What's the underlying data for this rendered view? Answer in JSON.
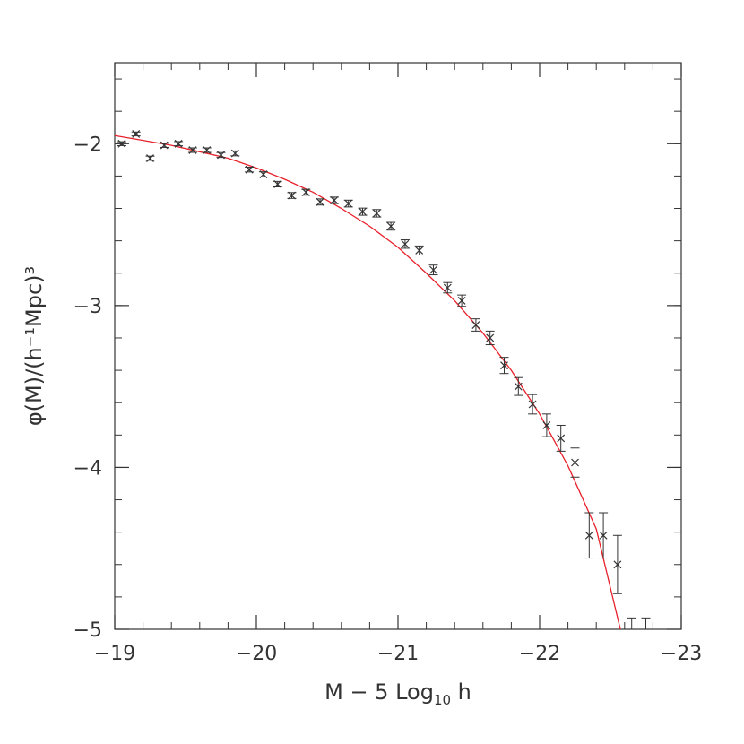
{
  "chart_data": {
    "type": "scatter",
    "title": "",
    "xlabel": "M − 5 Log",
    "xlabel_sub": "10",
    "xlabel_tail": " h",
    "ylabel": "φ(M)/(h⁻¹Mpc)³",
    "xlim": [
      -19,
      -23
    ],
    "ylim": [
      -5,
      -1.5
    ],
    "x_ticks": [
      -19,
      -20,
      -21,
      -22,
      -23
    ],
    "x_tick_labels": [
      "−19",
      "−20",
      "−21",
      "−22",
      "−23"
    ],
    "y_ticks": [
      -5,
      -4,
      -3,
      -2
    ],
    "y_tick_labels": [
      "−5",
      "−4",
      "−3",
      "−2"
    ],
    "x_minor_step": 0.2,
    "y_minor_step": 0.2,
    "grid": false,
    "colors": {
      "data": "#333333",
      "fit": "#e8202a",
      "axes": "#333333"
    },
    "series": [
      {
        "marker": "x",
        "error_bars": true,
        "x": [
          -19.05,
          -19.15,
          -19.25,
          -19.35,
          -19.45,
          -19.55,
          -19.65,
          -19.75,
          -19.85,
          -19.95,
          -20.05,
          -20.15,
          -20.25,
          -20.35,
          -20.45,
          -20.55,
          -20.65,
          -20.75,
          -20.85,
          -20.95,
          -21.05,
          -21.15,
          -21.25,
          -21.35,
          -21.45,
          -21.55,
          -21.65,
          -21.75,
          -21.85,
          -21.95,
          -22.05,
          -22.15,
          -22.25,
          -22.35,
          -22.45,
          -22.55
        ],
        "y": [
          -2.0,
          -1.94,
          -2.09,
          -2.01,
          -2.0,
          -2.04,
          -2.04,
          -2.07,
          -2.06,
          -2.16,
          -2.19,
          -2.25,
          -2.32,
          -2.3,
          -2.36,
          -2.35,
          -2.37,
          -2.42,
          -2.43,
          -2.51,
          -2.62,
          -2.66,
          -2.78,
          -2.89,
          -2.97,
          -3.12,
          -3.2,
          -3.37,
          -3.5,
          -3.61,
          -3.74,
          -3.82,
          -3.97,
          -4.42,
          -4.42,
          -4.6
        ],
        "err": [
          0.012,
          0.012,
          0.013,
          0.013,
          0.013,
          0.014,
          0.014,
          0.015,
          0.015,
          0.015,
          0.016,
          0.017,
          0.018,
          0.018,
          0.019,
          0.02,
          0.021,
          0.022,
          0.023,
          0.024,
          0.026,
          0.028,
          0.03,
          0.032,
          0.035,
          0.038,
          0.042,
          0.05,
          0.055,
          0.06,
          0.07,
          0.08,
          0.09,
          0.14,
          0.14,
          0.18
        ]
      },
      {
        "marker": "upper-limit",
        "x": [
          -22.65,
          -22.75
        ],
        "y_top": [
          -4.93,
          -4.93
        ]
      },
      {
        "line": "schechter-fit",
        "x": [
          -19.0,
          -19.2,
          -19.4,
          -19.6,
          -19.8,
          -20.0,
          -20.2,
          -20.4,
          -20.6,
          -20.8,
          -21.0,
          -21.2,
          -21.4,
          -21.6,
          -21.8,
          -22.0,
          -22.2,
          -22.4,
          -22.57
        ],
        "y": [
          -1.95,
          -1.98,
          -2.01,
          -2.05,
          -2.09,
          -2.15,
          -2.22,
          -2.3,
          -2.4,
          -2.51,
          -2.64,
          -2.8,
          -2.97,
          -3.17,
          -3.4,
          -3.67,
          -3.99,
          -4.38,
          -5.0
        ]
      }
    ]
  }
}
